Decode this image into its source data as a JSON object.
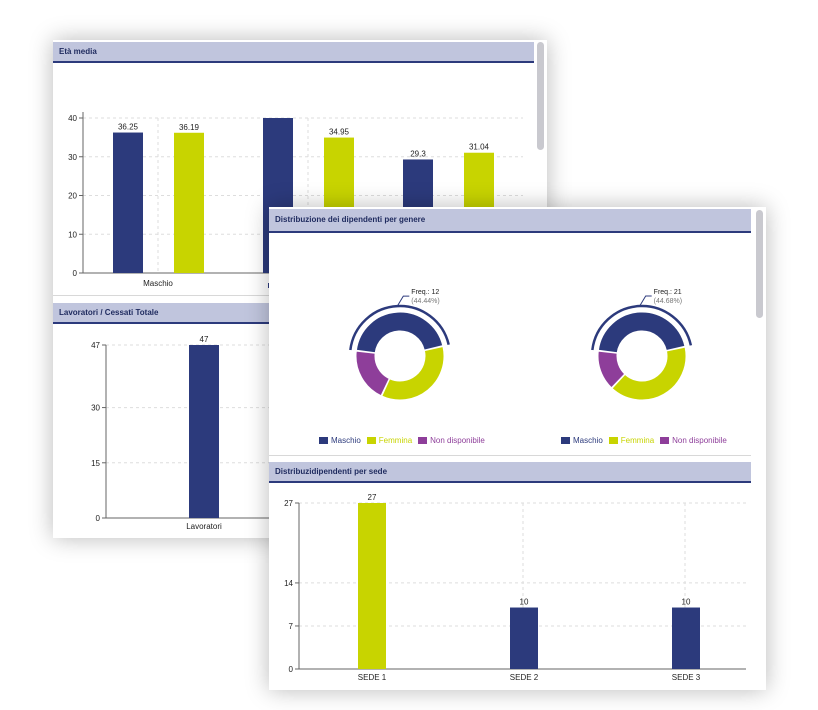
{
  "colors": {
    "navy": "#2c3a7c",
    "lime": "#c8d400",
    "purple": "#8e3e9a",
    "header_bg": "#c0c5dd"
  },
  "panels": {
    "eta_media": {
      "title": "Età media"
    },
    "lavoratori": {
      "title": "Lavoratori / Cessati Totale"
    },
    "genere": {
      "title": "Distribuzione dei dipendenti per genere"
    },
    "sede": {
      "title": "Distribuzidipendenti per sede"
    }
  },
  "chart_data": [
    {
      "id": "eta_media",
      "type": "bar",
      "categories": [
        "Maschio",
        "",
        ""
      ],
      "ylim": [
        0,
        40
      ],
      "yticks": [
        "0",
        "10",
        "20",
        "30",
        "40"
      ],
      "series": [
        {
          "color": "#2c3a7c",
          "values": [
            36.25,
            40,
            29.3
          ],
          "labels": [
            "36.25",
            "",
            "29.3"
          ]
        },
        {
          "color": "#c8d400",
          "values": [
            36.19,
            34.95,
            31.04
          ],
          "labels": [
            "36.19",
            "34.95",
            "31.04"
          ]
        }
      ],
      "grid": true
    },
    {
      "id": "lavoratori",
      "type": "bar",
      "categories": [
        "Lavoratori"
      ],
      "ylim": [
        0,
        47
      ],
      "yticks": [
        "0",
        "15",
        "30",
        "47"
      ],
      "values": [
        47
      ],
      "labels": [
        "47"
      ],
      "grid": true
    },
    {
      "id": "genere",
      "type": "pie",
      "charts": [
        {
          "slices": [
            {
              "name": "Maschio",
              "value": 44.44
            },
            {
              "name": "Femmina",
              "value": 35.56
            },
            {
              "name": "Non disponibile",
              "value": 20.0
            }
          ],
          "freq": "Freq.: 12",
          "pct": "(44.44%)"
        },
        {
          "slices": [
            {
              "name": "Maschio",
              "value": 44.68
            },
            {
              "name": "Femmina",
              "value": 40.43
            },
            {
              "name": "Non disponibile",
              "value": 14.89
            }
          ],
          "freq": "Freq.: 21",
          "pct": "(44.68%)"
        }
      ],
      "legend": [
        "Maschio",
        "Femmina",
        "Non disponibile"
      ],
      "legend_position": "bottom"
    },
    {
      "id": "sede",
      "type": "bar",
      "categories": [
        "SEDE 1",
        "SEDE 2",
        "SEDE 3"
      ],
      "ylim": [
        0,
        27
      ],
      "yticks": [
        "0",
        "7",
        "14",
        "27"
      ],
      "values": [
        27,
        10,
        10
      ],
      "labels": [
        "27",
        "10",
        "10"
      ],
      "colors": [
        "#c8d400",
        "#2c3a7c",
        "#2c3a7c"
      ],
      "grid": true
    }
  ]
}
